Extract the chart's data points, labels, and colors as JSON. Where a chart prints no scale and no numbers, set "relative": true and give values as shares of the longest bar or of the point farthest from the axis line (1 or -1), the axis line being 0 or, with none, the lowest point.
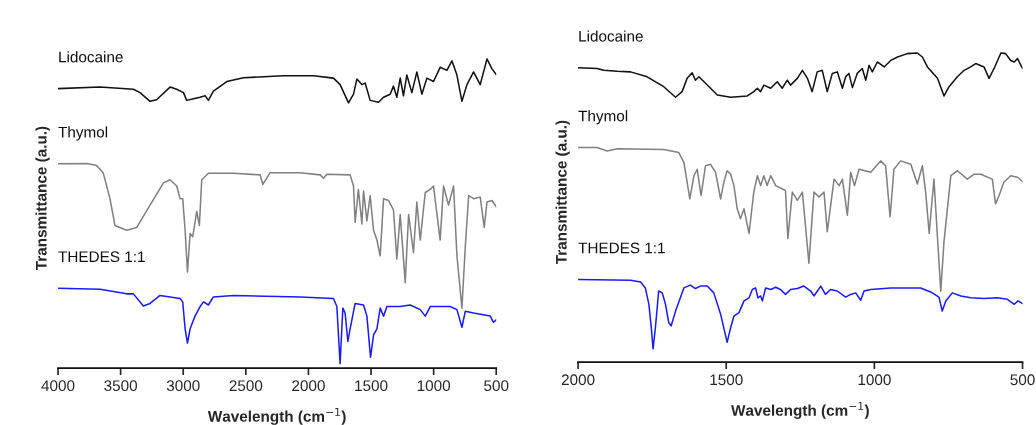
{
  "chart_data": [
    {
      "type": "line",
      "relative": true,
      "xlabel": "Wavelength (cm$^{−1}$)",
      "ylabel": "Transmittance (a.u.)",
      "xlim": [
        4000,
        500
      ],
      "xticks": [
        4000,
        3500,
        3000,
        2500,
        2000,
        1500,
        1000,
        500
      ],
      "tick_labels": "x",
      "series": [
        {
          "name": "Lidocaine",
          "color": "#111111",
          "x": [
            4000,
            3664,
            3398,
            3345,
            3265,
            3213,
            3105,
            3052,
            2998,
            2972,
            2918,
            2865,
            2825,
            2799,
            2759,
            2652,
            2519,
            2200,
            1960,
            1800,
            1747,
            1680,
            1640,
            1613,
            1573,
            1547,
            1507,
            1440,
            1400,
            1347,
            1321,
            1294,
            1267,
            1241,
            1214,
            1174,
            1134,
            1094,
            1054,
            1001,
            948,
            894,
            854,
            814,
            774,
            734,
            681,
            628,
            574,
            534,
            500
          ],
          "values": [
            0.904,
            0.909,
            0.902,
            0.891,
            0.863,
            0.868,
            0.909,
            0.902,
            0.891,
            0.866,
            0.871,
            0.876,
            0.881,
            0.866,
            0.896,
            0.927,
            0.939,
            0.946,
            0.946,
            0.938,
            0.917,
            0.858,
            0.886,
            0.935,
            0.917,
            0.922,
            0.866,
            0.86,
            0.876,
            0.886,
            0.912,
            0.876,
            0.938,
            0.881,
            0.948,
            0.891,
            0.958,
            0.886,
            0.938,
            0.927,
            0.973,
            0.963,
            0.994,
            0.948,
            0.863,
            0.917,
            0.958,
            0.917,
            1.0,
            0.968,
            0.95
          ]
        },
        {
          "name": "Thymol",
          "color": "#808080",
          "x": [
            4000,
            3771,
            3691,
            3638,
            3585,
            3545,
            3451,
            3371,
            3265,
            3158,
            3105,
            3052,
            3025,
            3004,
            2985,
            2966,
            2945,
            2924,
            2892,
            2871,
            2852,
            2799,
            2599,
            2386,
            2364,
            2306,
            2066,
            1906,
            1880,
            1853,
            1667,
            1640,
            1627,
            1601,
            1573,
            1560,
            1533,
            1507,
            1480,
            1453,
            1427,
            1400,
            1360,
            1321,
            1294,
            1267,
            1227,
            1200,
            1161,
            1134,
            1107,
            1067,
            1027,
            1001,
            948,
            921,
            881,
            841,
            814,
            774,
            747,
            720,
            681,
            628,
            596,
            574,
            534,
            500
          ],
          "values": [
            0.661,
            0.662,
            0.655,
            0.63,
            0.548,
            0.461,
            0.446,
            0.455,
            0.527,
            0.599,
            0.609,
            0.589,
            0.548,
            0.548,
            0.446,
            0.311,
            0.435,
            0.425,
            0.507,
            0.461,
            0.609,
            0.63,
            0.63,
            0.625,
            0.594,
            0.632,
            0.632,
            0.625,
            0.614,
            0.627,
            0.625,
            0.589,
            0.471,
            0.578,
            0.466,
            0.573,
            0.476,
            0.558,
            0.446,
            0.414,
            0.363,
            0.548,
            0.542,
            0.512,
            0.353,
            0.497,
            0.276,
            0.497,
            0.373,
            0.537,
            0.414,
            0.568,
            0.578,
            0.589,
            0.414,
            0.589,
            0.527,
            0.589,
            0.363,
            0.194,
            0.394,
            0.558,
            0.548,
            0.553,
            0.455,
            0.537,
            0.542,
            0.522
          ]
        },
        {
          "name": "THEDES 1:1",
          "color": "#1a1aff",
          "x": [
            4000,
            3664,
            3451,
            3398,
            3318,
            3265,
            3185,
            3025,
            3004,
            2985,
            2966,
            2945,
            2906,
            2865,
            2838,
            2799,
            2759,
            2599,
            2066,
            1800,
            1773,
            1747,
            1725,
            1707,
            1685,
            1667,
            1627,
            1560,
            1533,
            1504,
            1480,
            1453,
            1427,
            1400,
            1373,
            1267,
            1188,
            1107,
            1067,
            1027,
            868,
            814,
            774,
            747,
            681,
            548,
            522,
            500
          ],
          "values": [
            0.258,
            0.255,
            0.24,
            0.24,
            0.201,
            0.209,
            0.235,
            0.225,
            0.214,
            0.127,
            0.081,
            0.127,
            0.168,
            0.199,
            0.214,
            0.204,
            0.23,
            0.235,
            0.23,
            0.225,
            0.199,
            0.014,
            0.194,
            0.178,
            0.086,
            0.127,
            0.209,
            0.204,
            0.168,
            0.035,
            0.107,
            0.127,
            0.194,
            0.168,
            0.199,
            0.199,
            0.204,
            0.189,
            0.168,
            0.199,
            0.199,
            0.189,
            0.132,
            0.184,
            0.178,
            0.168,
            0.148,
            0.156
          ]
        }
      ]
    },
    {
      "type": "line",
      "relative": true,
      "xlabel": "Wavelength (cm$^{−1}$)",
      "ylabel": "Transmittance (a.u.)",
      "xlim": [
        2000,
        500
      ],
      "xticks": [
        2000,
        1500,
        1000,
        500
      ],
      "tick_labels": "x",
      "series": [
        {
          "name": "Lidocaine",
          "color": "#111111",
          "x": [
            2000,
            1936,
            1913,
            1868,
            1823,
            1767,
            1711,
            1671,
            1649,
            1632,
            1615,
            1604,
            1592,
            1575,
            1530,
            1485,
            1429,
            1407,
            1395,
            1384,
            1373,
            1350,
            1328,
            1311,
            1294,
            1283,
            1260,
            1243,
            1226,
            1210,
            1193,
            1176,
            1159,
            1142,
            1125,
            1108,
            1097,
            1086,
            1074,
            1058,
            1041,
            1029,
            1018,
            1007,
            990,
            967,
            945,
            922,
            889,
            855,
            838,
            821,
            787,
            765,
            748,
            720,
            697,
            675,
            658,
            630,
            613,
            596,
            573,
            557,
            540,
            528,
            517,
            500
          ],
          "values": [
            0.952,
            0.95,
            0.944,
            0.941,
            0.939,
            0.923,
            0.891,
            0.857,
            0.875,
            0.918,
            0.936,
            0.912,
            0.923,
            0.907,
            0.864,
            0.857,
            0.861,
            0.875,
            0.886,
            0.875,
            0.896,
            0.886,
            0.907,
            0.886,
            0.912,
            0.896,
            0.918,
            0.944,
            0.918,
            0.875,
            0.939,
            0.944,
            0.875,
            0.934,
            0.939,
            0.886,
            0.923,
            0.934,
            0.888,
            0.934,
            0.95,
            0.912,
            0.96,
            0.939,
            0.971,
            0.955,
            0.976,
            0.987,
            0.998,
            1.0,
            0.987,
            0.955,
            0.918,
            0.861,
            0.891,
            0.923,
            0.944,
            0.955,
            0.966,
            0.955,
            0.918,
            0.95,
            1.0,
            0.998,
            0.976,
            0.971,
            0.982,
            0.95
          ]
        },
        {
          "name": "Thymol",
          "color": "#808080",
          "x": [
            2000,
            1936,
            1902,
            1868,
            1711,
            1660,
            1643,
            1632,
            1623,
            1609,
            1598,
            1585,
            1570,
            1553,
            1536,
            1519,
            1508,
            1497,
            1485,
            1474,
            1463,
            1452,
            1440,
            1423,
            1407,
            1395,
            1384,
            1373,
            1362,
            1350,
            1333,
            1300,
            1292,
            1277,
            1260,
            1243,
            1221,
            1204,
            1187,
            1170,
            1159,
            1136,
            1119,
            1108,
            1091,
            1080,
            1067,
            1052,
            1012,
            979,
            962,
            947,
            934,
            911,
            877,
            855,
            838,
            827,
            815,
            799,
            776,
            765,
            742,
            720,
            686,
            663,
            641,
            602,
            591,
            579,
            563,
            540,
            517,
            500
          ],
          "values": [
            0.694,
            0.694,
            0.683,
            0.69,
            0.688,
            0.678,
            0.646,
            0.582,
            0.528,
            0.603,
            0.624,
            0.539,
            0.635,
            0.64,
            0.614,
            0.528,
            0.582,
            0.619,
            0.608,
            0.571,
            0.496,
            0.464,
            0.496,
            0.416,
            0.55,
            0.603,
            0.571,
            0.603,
            0.571,
            0.603,
            0.571,
            0.555,
            0.4,
            0.55,
            0.523,
            0.55,
            0.32,
            0.55,
            0.534,
            0.55,
            0.422,
            0.592,
            0.571,
            0.592,
            0.475,
            0.614,
            0.571,
            0.624,
            0.614,
            0.651,
            0.635,
            0.47,
            0.624,
            0.651,
            0.64,
            0.576,
            0.635,
            0.55,
            0.416,
            0.592,
            0.229,
            0.39,
            0.603,
            0.619,
            0.592,
            0.608,
            0.608,
            0.592,
            0.512,
            0.539,
            0.582,
            0.603,
            0.598,
            0.584
          ]
        },
        {
          "name": "THEDES 1:1",
          "color": "#1a1aff",
          "x": [
            2000,
            1823,
            1789,
            1773,
            1761,
            1753,
            1747,
            1739,
            1728,
            1716,
            1705,
            1694,
            1686,
            1671,
            1643,
            1621,
            1604,
            1587,
            1564,
            1542,
            1519,
            1502,
            1497,
            1485,
            1474,
            1457,
            1440,
            1423,
            1412,
            1401,
            1393,
            1384,
            1378,
            1367,
            1350,
            1333,
            1317,
            1300,
            1283,
            1260,
            1238,
            1215,
            1204,
            1181,
            1165,
            1148,
            1125,
            1097,
            1080,
            1063,
            1046,
            1035,
            1012,
            945,
            844,
            810,
            782,
            771,
            759,
            737,
            708,
            675,
            630,
            585,
            551,
            528,
            515,
            500
          ],
          "values": [
            0.267,
            0.265,
            0.259,
            0.24,
            0.187,
            0.112,
            0.043,
            0.112,
            0.23,
            0.224,
            0.187,
            0.128,
            0.117,
            0.165,
            0.24,
            0.249,
            0.238,
            0.246,
            0.246,
            0.224,
            0.155,
            0.085,
            0.064,
            0.112,
            0.149,
            0.16,
            0.198,
            0.208,
            0.235,
            0.24,
            0.208,
            0.214,
            0.198,
            0.24,
            0.235,
            0.242,
            0.235,
            0.219,
            0.235,
            0.238,
            0.246,
            0.23,
            0.214,
            0.246,
            0.219,
            0.235,
            0.23,
            0.21,
            0.219,
            0.224,
            0.2,
            0.23,
            0.235,
            0.24,
            0.24,
            0.227,
            0.21,
            0.165,
            0.198,
            0.224,
            0.214,
            0.208,
            0.206,
            0.208,
            0.203,
            0.187,
            0.198,
            0.189
          ]
        }
      ]
    }
  ]
}
